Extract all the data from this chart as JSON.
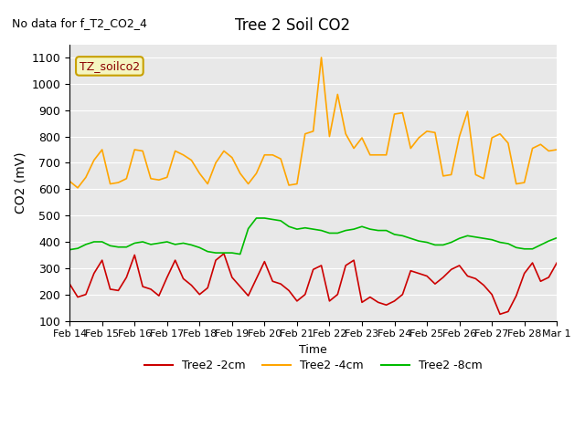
{
  "title": "Tree 2 Soil CO2",
  "subtitle": "No data for f_T2_CO2_4",
  "ylabel": "CO2 (mV)",
  "xlabel": "Time",
  "ylim": [
    100,
    1150
  ],
  "yticks": [
    100,
    200,
    300,
    400,
    500,
    600,
    700,
    800,
    900,
    1000,
    1100
  ],
  "background_color": "#e8e8e8",
  "legend_label": "TZ_soilco2",
  "legend_box_color": "#f5f5c0",
  "legend_box_edge": "#c8a000",
  "series_labels": [
    "Tree2 -2cm",
    "Tree2 -4cm",
    "Tree2 -8cm"
  ],
  "series_colors": [
    "#cc0000",
    "#ffa500",
    "#00bb00"
  ],
  "x_tick_labels": [
    "Feb 14",
    "Feb 15",
    "Feb 16",
    "Feb 17",
    "Feb 18",
    "Feb 19",
    "Feb 20",
    "Feb 21",
    "Feb 22",
    "Feb 23",
    "Feb 24",
    "Feb 25",
    "Feb 26",
    "Feb 27",
    "Feb 28",
    "Mar 1"
  ],
  "red_x": [
    0,
    0.25,
    0.5,
    0.75,
    1,
    1.25,
    1.5,
    1.75,
    2,
    2.25,
    2.5,
    2.75,
    3,
    3.25,
    3.5,
    3.75,
    4,
    4.25,
    4.5,
    4.75,
    5,
    5.25,
    5.5,
    5.75,
    6,
    6.25,
    6.5,
    6.75,
    7,
    7.25,
    7.5,
    7.75,
    8,
    8.25,
    8.5,
    8.75,
    9,
    9.25,
    9.5,
    9.75,
    10,
    10.25,
    10.5,
    10.75,
    11,
    11.25,
    11.5,
    11.75,
    12,
    12.25,
    12.5,
    12.75,
    13,
    13.25,
    13.5,
    13.75,
    14,
    14.25,
    14.5,
    14.75,
    15
  ],
  "red_y": [
    240,
    190,
    200,
    280,
    330,
    220,
    215,
    265,
    350,
    230,
    220,
    195,
    265,
    330,
    260,
    235,
    200,
    225,
    330,
    355,
    265,
    230,
    195,
    260,
    325,
    250,
    240,
    215,
    175,
    200,
    295,
    310,
    175,
    200,
    310,
    330,
    170,
    190,
    170,
    160,
    175,
    200,
    290,
    280,
    270,
    240,
    265,
    295,
    310,
    270,
    260,
    235,
    200,
    125,
    135,
    195,
    280,
    320,
    250,
    265,
    320
  ],
  "orange_x": [
    0,
    0.25,
    0.5,
    0.75,
    1,
    1.25,
    1.5,
    1.75,
    2,
    2.25,
    2.5,
    2.75,
    3,
    3.25,
    3.5,
    3.75,
    4,
    4.25,
    4.5,
    4.75,
    5,
    5.25,
    5.5,
    5.75,
    6,
    6.25,
    6.5,
    6.75,
    7,
    7.25,
    7.5,
    7.75,
    8,
    8.25,
    8.5,
    8.75,
    9,
    9.25,
    9.5,
    9.75,
    10,
    10.25,
    10.5,
    10.75,
    11,
    11.25,
    11.5,
    11.75,
    12,
    12.25,
    12.5,
    12.75,
    13,
    13.25,
    13.5,
    13.75,
    14,
    14.25,
    14.5,
    14.75,
    15
  ],
  "orange_y": [
    630,
    605,
    645,
    710,
    750,
    620,
    625,
    640,
    750,
    745,
    640,
    635,
    645,
    745,
    730,
    710,
    660,
    620,
    700,
    745,
    720,
    660,
    620,
    660,
    730,
    730,
    715,
    615,
    620,
    810,
    820,
    1100,
    800,
    960,
    810,
    755,
    795,
    730,
    730,
    730,
    885,
    890,
    755,
    795,
    820,
    815,
    650,
    655,
    800,
    895,
    655,
    640,
    795,
    810,
    775,
    620,
    625,
    755,
    770,
    745,
    750
  ],
  "green_x": [
    0,
    0.25,
    0.5,
    0.75,
    1,
    1.25,
    1.5,
    1.75,
    2,
    2.25,
    2.5,
    2.75,
    3,
    3.25,
    3.5,
    3.75,
    4,
    4.25,
    4.5,
    4.75,
    5,
    5.25,
    5.5,
    5.75,
    6,
    6.25,
    6.5,
    6.75,
    7,
    7.25,
    7.5,
    7.75,
    8,
    8.25,
    8.5,
    8.75,
    9,
    9.25,
    9.5,
    9.75,
    10,
    10.25,
    10.5,
    10.75,
    11,
    11.25,
    11.5,
    11.75,
    12,
    12.25,
    12.5,
    12.75,
    13,
    13.25,
    13.5,
    13.75,
    14,
    14.25,
    14.5,
    14.75,
    15
  ],
  "green_y": [
    370,
    375,
    390,
    400,
    400,
    385,
    380,
    380,
    395,
    400,
    390,
    395,
    400,
    390,
    395,
    388,
    378,
    363,
    358,
    358,
    358,
    353,
    450,
    490,
    490,
    485,
    480,
    458,
    448,
    453,
    448,
    443,
    433,
    433,
    443,
    448,
    458,
    448,
    443,
    443,
    428,
    423,
    413,
    403,
    398,
    388,
    388,
    398,
    413,
    423,
    418,
    413,
    408,
    398,
    393,
    378,
    373,
    373,
    388,
    403,
    415
  ]
}
